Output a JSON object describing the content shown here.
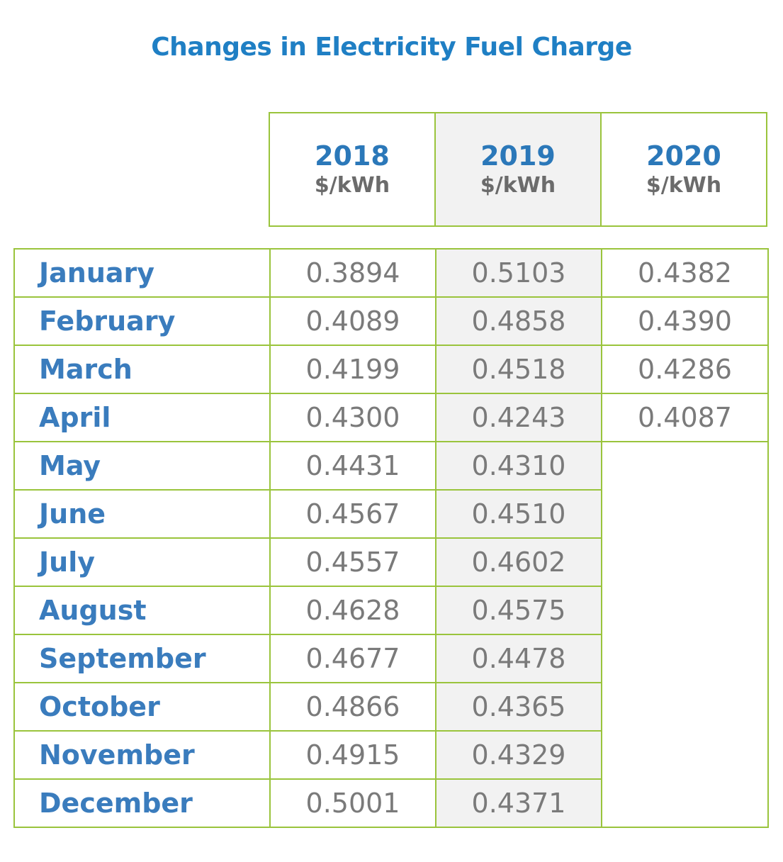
{
  "chart_data": {
    "type": "table",
    "title": "Changes in Electricity Fuel Charge",
    "columns": [
      {
        "year": "2018",
        "unit": "$/kWh"
      },
      {
        "year": "2019",
        "unit": "$/kWh"
      },
      {
        "year": "2020",
        "unit": "$/kWh"
      }
    ],
    "rows": [
      {
        "month": "January",
        "values": [
          "0.3894",
          "0.5103",
          "0.4382"
        ]
      },
      {
        "month": "February",
        "values": [
          "0.4089",
          "0.4858",
          "0.4390"
        ]
      },
      {
        "month": "March",
        "values": [
          "0.4199",
          "0.4518",
          "0.4286"
        ]
      },
      {
        "month": "April",
        "values": [
          "0.4300",
          "0.4243",
          "0.4087"
        ]
      },
      {
        "month": "May",
        "values": [
          "0.4431",
          "0.4310",
          ""
        ]
      },
      {
        "month": "June",
        "values": [
          "0.4567",
          "0.4510",
          ""
        ]
      },
      {
        "month": "July",
        "values": [
          "0.4557",
          "0.4602",
          ""
        ]
      },
      {
        "month": "August",
        "values": [
          "0.4628",
          "0.4575",
          ""
        ]
      },
      {
        "month": "September",
        "values": [
          "0.4677",
          "0.4478",
          ""
        ]
      },
      {
        "month": "October",
        "values": [
          "0.4866",
          "0.4365",
          ""
        ]
      },
      {
        "month": "November",
        "values": [
          "0.4915",
          "0.4329",
          ""
        ]
      },
      {
        "month": "December",
        "values": [
          "0.5001",
          "0.4371",
          ""
        ]
      }
    ]
  },
  "colors": {
    "title": "#1f7fc4",
    "header_text": "#2b78b9",
    "month_text": "#3a7cbd",
    "value_text": "#7a7a7a",
    "border": "#9ac43c",
    "highlight_column_bg": "#f2f2f2"
  }
}
